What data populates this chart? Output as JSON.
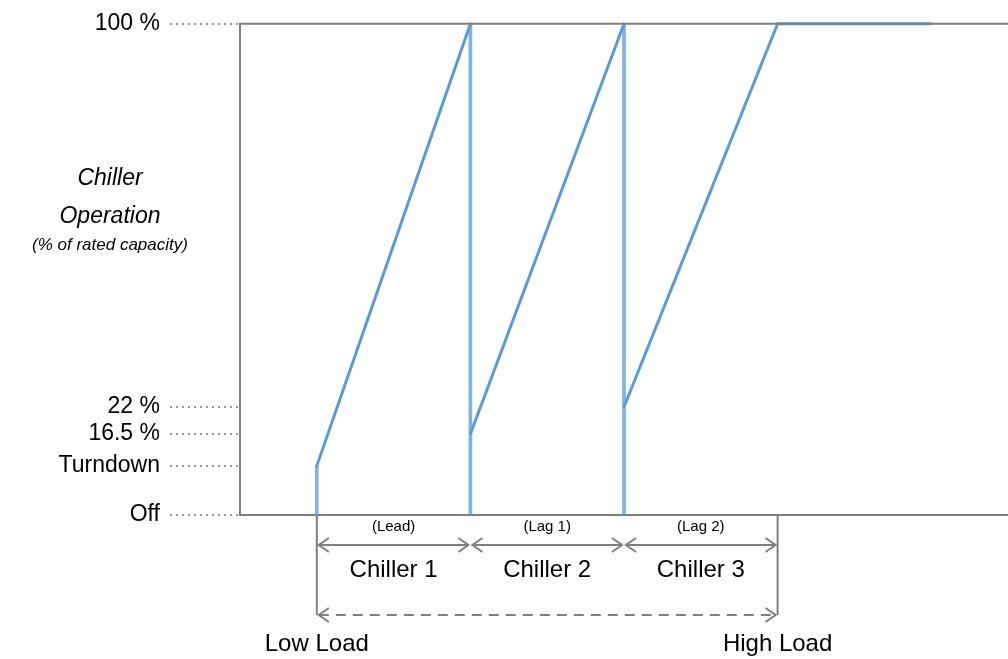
{
  "chart_data": {
    "type": "line",
    "ylabel": "Chiller Operation (% of rated capacity)",
    "categories": [
      null,
      null,
      null,
      null,
      null
    ],
    "series": [
      {
        "type": "bar",
        "color": "#7db4e2",
        "values": [
          10,
          100,
          100,
          null,
          null
        ]
      },
      {
        "color": "#5b9bd5",
        "values": [
          10,
          100,
          null,
          null,
          null
        ]
      },
      {
        "color": "#5b9bd5",
        "values": [
          null,
          16.5,
          100,
          null,
          null
        ]
      },
      {
        "color": "#5b9bd5",
        "values": [
          null,
          null,
          22,
          100,
          100
        ]
      }
    ],
    "ylim": [
      0,
      100
    ],
    "yticks": [
      {
        "value": 0,
        "label": "Off"
      },
      {
        "value": 10,
        "label": "Turndown"
      },
      {
        "value": 16.5,
        "label": "16.5 %"
      },
      {
        "value": 22,
        "label": "22 %"
      },
      {
        "value": 100,
        "label": "100 %"
      }
    ],
    "tick_labels": "y",
    "marker": "none",
    "line_style": "solid",
    "legend": false,
    "annotations": [
      "(Lead)",
      "Chiller 1",
      "(Lag 1)",
      "Chiller 2",
      "(Lag 2)",
      "Chiller 3",
      "Low Load",
      "High Load"
    ]
  }
}
